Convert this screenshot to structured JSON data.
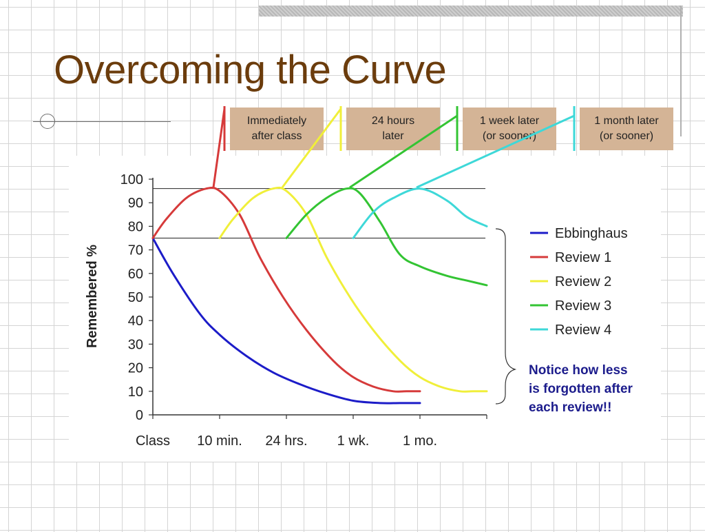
{
  "slide": {
    "title": "Overcoming the Curve",
    "stages": [
      {
        "label": "Immediately\nafter class",
        "color": "#d63a3a"
      },
      {
        "label": "24 hours\nlater",
        "color": "#f0ef3a"
      },
      {
        "label": "1 week later\n(or sooner)",
        "color": "#33c433"
      },
      {
        "label": "1 month later\n(or sooner)",
        "color": "#3ed8d8"
      }
    ],
    "note": "Notice how less\nis forgotten after\neach review!!",
    "colors": {
      "title": "#6b3c0c",
      "stage_box": "#d4b496",
      "note": "#1c1c8c"
    }
  },
  "chart_data": {
    "type": "line",
    "ylabel": "Remembered %",
    "xlabel": "",
    "ylim": [
      0,
      100
    ],
    "yticks": [
      0,
      10,
      20,
      30,
      40,
      50,
      60,
      70,
      80,
      90,
      100
    ],
    "xticks": [
      "Class",
      "10 min.",
      "24 hrs.",
      "1 wk.",
      "1 mo."
    ],
    "reference_lines": [
      96,
      75
    ],
    "legend_position": "right",
    "series": [
      {
        "name": "Ebbinghaus",
        "color": "#1c1cc8",
        "points": [
          [
            0,
            75
          ],
          [
            0.3,
            60
          ],
          [
            0.7,
            43
          ],
          [
            1.0,
            34
          ],
          [
            1.4,
            25
          ],
          [
            1.8,
            18
          ],
          [
            2.2,
            13
          ],
          [
            2.6,
            9
          ],
          [
            3.0,
            6
          ],
          [
            3.4,
            5
          ],
          [
            3.7,
            5
          ],
          [
            4.0,
            5
          ]
        ]
      },
      {
        "name": "Review 1",
        "color": "#d63a3a",
        "points": [
          [
            0,
            75
          ],
          [
            0.2,
            83
          ],
          [
            0.5,
            92
          ],
          [
            0.8,
            96
          ],
          [
            1.0,
            95
          ],
          [
            1.3,
            85
          ],
          [
            1.6,
            67
          ],
          [
            1.95,
            50
          ],
          [
            2.3,
            36
          ],
          [
            2.7,
            23
          ],
          [
            3.0,
            16
          ],
          [
            3.3,
            12
          ],
          [
            3.6,
            10
          ],
          [
            3.8,
            10
          ],
          [
            4.0,
            10
          ]
        ]
      },
      {
        "name": "Review 2",
        "color": "#f0ef3a",
        "points": [
          [
            0,
            75
          ],
          [
            0.2,
            83
          ],
          [
            0.5,
            92
          ],
          [
            0.8,
            96
          ],
          [
            1.0,
            95
          ],
          [
            1.3,
            85
          ],
          [
            1.6,
            67
          ],
          [
            1.95,
            50
          ],
          [
            2.3,
            36
          ],
          [
            2.7,
            23
          ],
          [
            3.0,
            16
          ],
          [
            3.3,
            12
          ],
          [
            3.6,
            10
          ],
          [
            3.8,
            10
          ],
          [
            4.0,
            10
          ]
        ]
      },
      {
        "name": "Review 3",
        "color": "#33c433",
        "points": [
          [
            0,
            75
          ],
          [
            0.3,
            85
          ],
          [
            0.6,
            92
          ],
          [
            0.9,
            96
          ],
          [
            1.1,
            94
          ],
          [
            1.4,
            82
          ],
          [
            1.7,
            68
          ],
          [
            2.0,
            63
          ],
          [
            2.4,
            59
          ],
          [
            2.7,
            57
          ],
          [
            3.0,
            55
          ]
        ]
      },
      {
        "name": "Review 4",
        "color": "#3ed8d8",
        "points": [
          [
            0,
            75
          ],
          [
            0.3,
            86
          ],
          [
            0.6,
            92
          ],
          [
            1.0,
            96
          ],
          [
            1.4,
            91
          ],
          [
            1.7,
            84
          ],
          [
            2.0,
            80
          ]
        ]
      }
    ]
  }
}
